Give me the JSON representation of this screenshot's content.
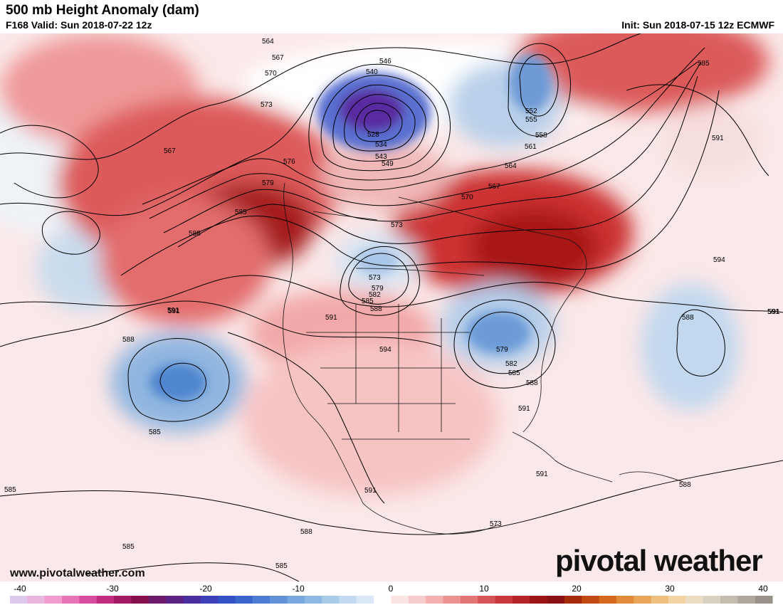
{
  "header": {
    "title": "500 mb Height Anomaly (dam)",
    "valid": "F168 Valid: Sun 2018-07-22 12z",
    "init": "Init: Sun 2018-07-15 12z ECMWF"
  },
  "branding": {
    "website": "www.pivotalweather.com",
    "logo_text": "pivotal weather"
  },
  "contour_labels": [
    "564",
    "567",
    "570",
    "573",
    "576",
    "579",
    "546",
    "540",
    "528",
    "534",
    "543",
    "549",
    "552",
    "555",
    "558",
    "561",
    "564",
    "567",
    "570",
    "573",
    "585",
    "588",
    "591",
    "594",
    "588",
    "591",
    "573",
    "579",
    "582",
    "585",
    "588",
    "591",
    "594",
    "579",
    "582",
    "585",
    "588",
    "591",
    "591",
    "591",
    "588",
    "585",
    "585",
    "591",
    "588",
    "585",
    "591",
    "588",
    "585",
    "567",
    "573",
    "585",
    "591"
  ],
  "legend": {
    "ticks": [
      "-40",
      "-30",
      "-20",
      "-10",
      "0",
      "10",
      "20",
      "30",
      "40"
    ],
    "colors": [
      "#dcc9ec",
      "#e9b6e0",
      "#f29bd0",
      "#e874b8",
      "#d84d9d",
      "#c12e80",
      "#a21a63",
      "#86104f",
      "#6e1a6a",
      "#5c2284",
      "#4a2ea0",
      "#3c3fb8",
      "#3350c4",
      "#3a66cc",
      "#4c7dd2",
      "#6192d8",
      "#78a6de",
      "#90b8e4",
      "#a8cbea",
      "#c2dbf0",
      "#dae8f5",
      "#ffffff",
      "#fbe4e4",
      "#f7cccc",
      "#f2b0ae",
      "#eb9291",
      "#e27473",
      "#d65556",
      "#c7393b",
      "#b42326",
      "#9d1417",
      "#8a0f12",
      "#a52a0a",
      "#c04a12",
      "#d4691d",
      "#e08a3a",
      "#e8a55a",
      "#efbf80",
      "#f3d3a2",
      "#ecdcc4",
      "#d8d0c0",
      "#c4bcae",
      "#aea79c",
      "#98928a"
    ]
  }
}
